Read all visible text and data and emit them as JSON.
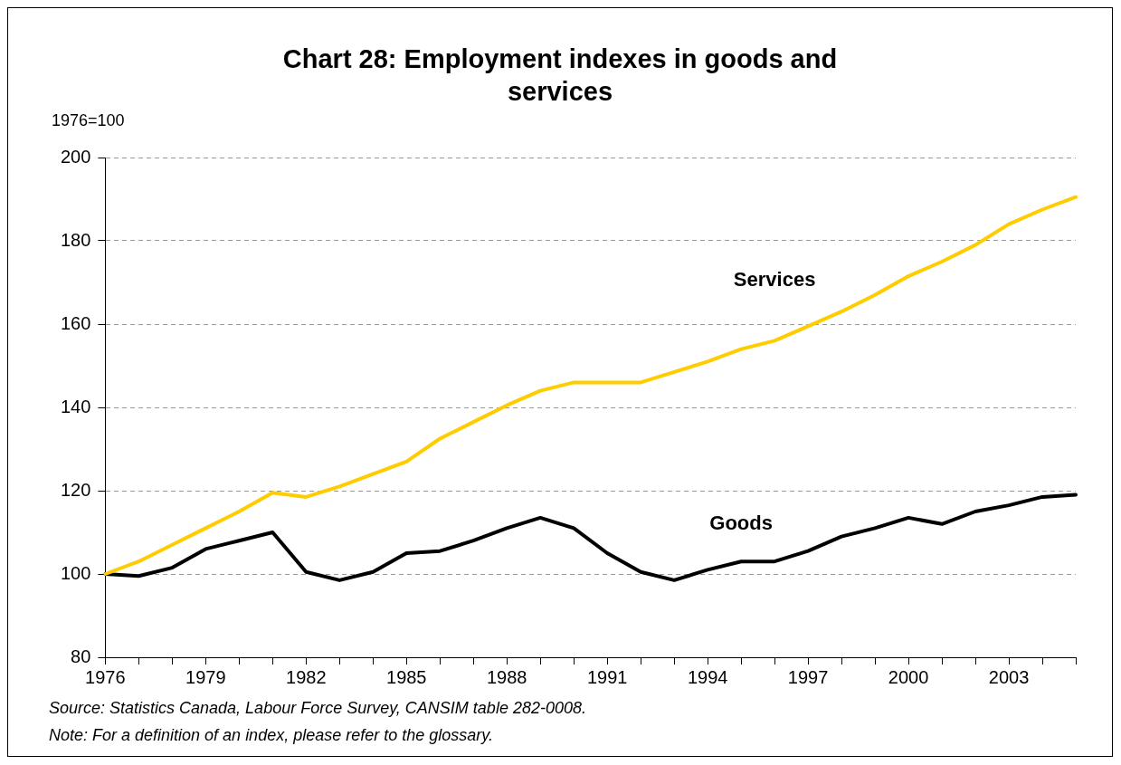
{
  "chart_data": {
    "type": "line",
    "title": "Chart 28: Employment indexes in goods and services",
    "ylabel": "1976=100",
    "categories": [
      "1976",
      null,
      null,
      "1979",
      null,
      null,
      "1982",
      null,
      null,
      "1985",
      null,
      null,
      "1988",
      null,
      null,
      "1991",
      null,
      null,
      "1994",
      null,
      null,
      "1997",
      null,
      null,
      "2000",
      null,
      null,
      "2003",
      null,
      null
    ],
    "series": [
      {
        "name": "Services",
        "color": "#ffcc00",
        "values": [
          100,
          103,
          107,
          111,
          115,
          119.5,
          118.5,
          121,
          124,
          127,
          132.5,
          136.5,
          140.5,
          144,
          146,
          146,
          146,
          148.5,
          151,
          154,
          156,
          159.5,
          163,
          167,
          171.5,
          175,
          179,
          184,
          187.5,
          190.5
        ]
      },
      {
        "name": "Goods",
        "color": "#000000",
        "values": [
          100,
          99.5,
          101.5,
          106,
          108,
          110,
          100.5,
          98.5,
          100.5,
          105,
          105.5,
          108,
          111,
          113.5,
          111,
          105,
          100.5,
          98.5,
          101,
          103,
          103,
          105.5,
          109,
          111,
          113.5,
          112,
          115,
          116.5,
          118.5,
          119
        ]
      }
    ],
    "ylim": [
      80,
      200
    ],
    "yticks": [
      80,
      100,
      120,
      140,
      160,
      180,
      200
    ],
    "grid": "y",
    "legend": false,
    "marker": "none",
    "line_style": "solid",
    "annotations": [
      "Source: Statistics Canada, Labour Force Survey, CANSIM table 282-0008.",
      "Note: For a definition of an index, please refer to the glossary."
    ]
  }
}
